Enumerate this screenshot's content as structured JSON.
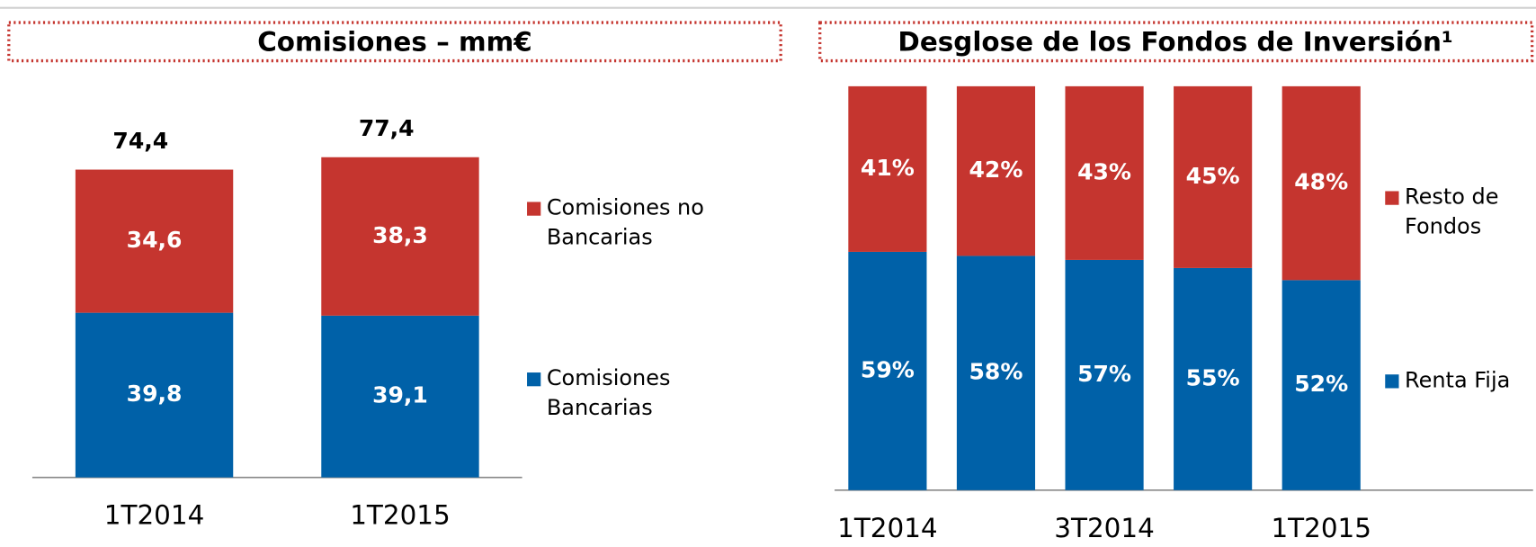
{
  "chart_data": [
    {
      "type": "stacked_bar",
      "title": "Comisiones – mm€",
      "categories": [
        "1T2014",
        "1T2015"
      ],
      "series": [
        {
          "name": "Comisiones Bancarias",
          "color": "#0061a8",
          "values": [
            39.8,
            39.1
          ],
          "value_labels": [
            "39,8",
            "39,1"
          ]
        },
        {
          "name": "Comisiones no Bancarias",
          "color": "#c5352f",
          "values": [
            34.6,
            38.3
          ],
          "value_labels": [
            "34,6",
            "38,3"
          ]
        }
      ],
      "totals": [
        74.4,
        77.4
      ],
      "total_labels": [
        "74,4",
        "77,4"
      ]
    },
    {
      "type": "stacked_bar",
      "title": "Desglose de los Fondos de Inversión¹",
      "categories": [
        "1T2014",
        null,
        "3T2014",
        null,
        "1T2015"
      ],
      "series": [
        {
          "name": "Renta Fija",
          "color": "#0061a8",
          "values": [
            59,
            58,
            57,
            55,
            52
          ],
          "value_labels": [
            "59%",
            "58%",
            "57%",
            "55%",
            "52%"
          ]
        },
        {
          "name": "Resto de Fondos",
          "color": "#c5352f",
          "values": [
            41,
            42,
            43,
            45,
            48
          ],
          "value_labels": [
            "41%",
            "42%",
            "43%",
            "45%",
            "48%"
          ]
        }
      ]
    }
  ]
}
